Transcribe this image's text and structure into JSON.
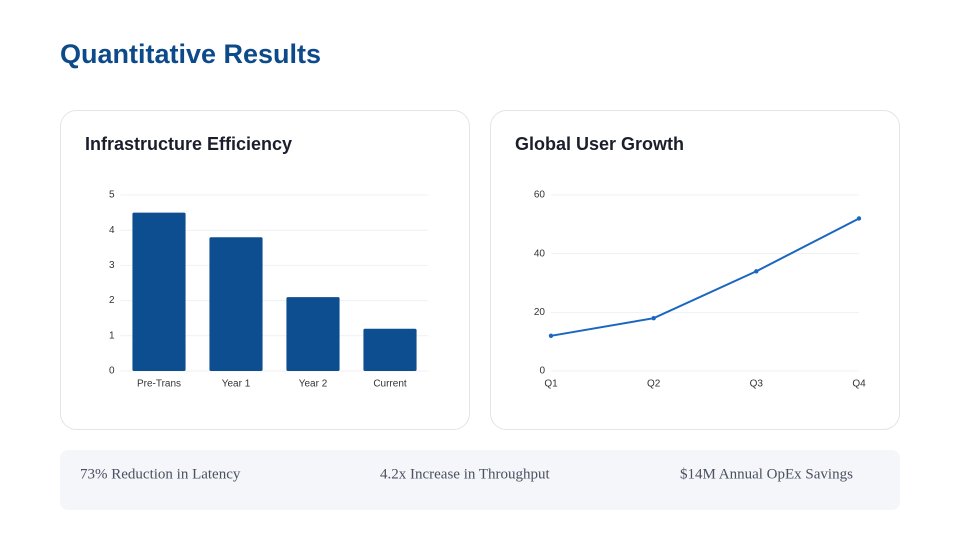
{
  "title": "Quantitative Results",
  "chart_data": [
    {
      "type": "bar",
      "title": "Infrastructure Efficiency",
      "categories": [
        "Pre-Trans",
        "Year 1",
        "Year 2",
        "Current"
      ],
      "values": [
        4.5,
        3.8,
        2.1,
        1.2
      ],
      "color": "#0c4e8f",
      "ylim": [
        0,
        5
      ],
      "yticks": [
        0,
        1,
        2,
        3,
        4,
        5
      ],
      "grid": true
    },
    {
      "type": "line",
      "title": "Global User Growth",
      "categories": [
        "Q1",
        "Q2",
        "Q3",
        "Q4"
      ],
      "values": [
        12,
        18,
        34,
        52
      ],
      "color": "#1a66c0",
      "ylim": [
        0,
        60
      ],
      "yticks": [
        0,
        20,
        40,
        60
      ],
      "grid": true
    }
  ],
  "stats": [
    "73% Reduction in Latency",
    "4.2x Increase in Throughput",
    "$14M Annual OpEx Savings"
  ]
}
